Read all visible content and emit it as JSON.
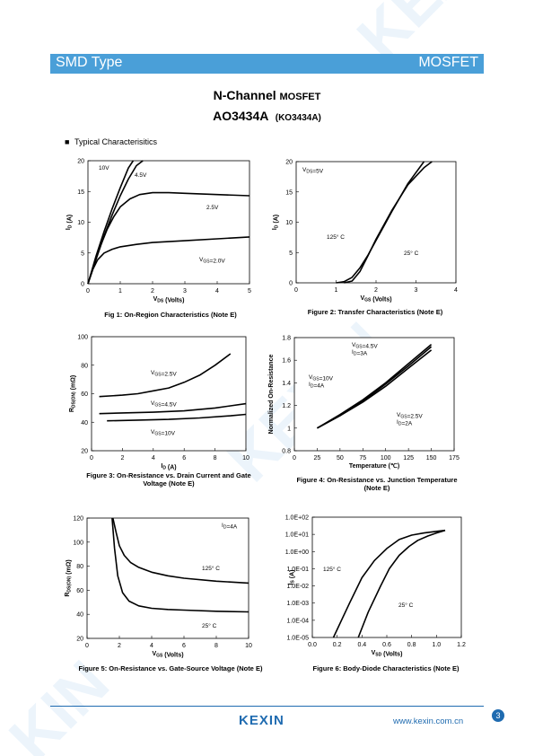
{
  "header": {
    "left_label": "SMD Type",
    "right_label": "MOSFET",
    "banner_color": "#4a9fd8"
  },
  "title": {
    "line1": "N-Channel",
    "line1_suffix": "MOSFET",
    "part_number": "AO3434A",
    "part_alt": "(KO3434A)"
  },
  "section": {
    "bullet": "■",
    "label": "Typical  Characterisitics"
  },
  "chart_data": [
    {
      "type": "line",
      "caption": "Fig 1: On-Region Characteristics (Note E)",
      "xlabel": "V_DS (Volts)",
      "ylabel": "I_D (A)",
      "xlim": [
        0,
        5
      ],
      "ylim": [
        0,
        20
      ],
      "xticks": [
        "0",
        "1",
        "2",
        "3",
        "4",
        "5"
      ],
      "yticks": [
        "0",
        "5",
        "10",
        "15",
        "20"
      ],
      "series": [
        {
          "name": "10V",
          "x": [
            0,
            0.25,
            0.5,
            0.75,
            1.0,
            1.25,
            1.4
          ],
          "y": [
            0,
            4.5,
            8.5,
            12.2,
            15.6,
            18.8,
            20
          ]
        },
        {
          "name": "4.5V",
          "x": [
            0,
            0.25,
            0.5,
            0.75,
            1.0,
            1.25,
            1.5,
            1.7
          ],
          "y": [
            0,
            4,
            7.8,
            11.2,
            14.3,
            17.0,
            19.2,
            20
          ]
        },
        {
          "name": "2.5V",
          "x": [
            0,
            0.2,
            0.4,
            0.6,
            0.8,
            1.0,
            1.3,
            1.6,
            2.0,
            2.5,
            3.0,
            4.0,
            5.0
          ],
          "y": [
            0,
            3.2,
            6.3,
            8.9,
            10.9,
            12.5,
            13.8,
            14.5,
            14.8,
            14.8,
            14.7,
            14.5,
            14.3
          ]
        },
        {
          "name": "V_GS=2.0V",
          "x": [
            0,
            0.15,
            0.3,
            0.5,
            0.75,
            1.0,
            1.5,
            2.0,
            3.0,
            4.0,
            5.0
          ],
          "y": [
            0,
            2.3,
            3.9,
            5.0,
            5.6,
            6.0,
            6.4,
            6.7,
            7.0,
            7.3,
            7.6
          ]
        }
      ],
      "annotations": [
        "10V",
        "4.5V",
        "2.5V",
        "V_GS=2.0V"
      ]
    },
    {
      "type": "line",
      "caption": "Figure 2: Transfer Characteristics (Note E)",
      "xlabel": "V_GS (Volts)",
      "ylabel": "I_D (A)",
      "xlim": [
        0,
        4
      ],
      "ylim": [
        0,
        20
      ],
      "xticks": [
        "0",
        "1",
        "2",
        "3",
        "4"
      ],
      "yticks": [
        "0",
        "5",
        "10",
        "15",
        "20"
      ],
      "annotations": [
        "V_DS=5V",
        "125° C",
        "25° C"
      ],
      "series": [
        {
          "name": "125° C",
          "x": [
            1.0,
            1.2,
            1.4,
            1.6,
            1.8,
            2.0,
            2.4,
            2.8,
            3.2
          ],
          "y": [
            0,
            0.2,
            0.9,
            2.5,
            4.6,
            7.0,
            11.8,
            16.4,
            20
          ]
        },
        {
          "name": "25° C",
          "x": [
            1.2,
            1.4,
            1.6,
            1.8,
            2.0,
            2.4,
            2.8,
            3.2,
            3.4
          ],
          "y": [
            0,
            0.3,
            1.9,
            4.5,
            7.2,
            12.0,
            16.2,
            19.0,
            20
          ]
        }
      ]
    },
    {
      "type": "line",
      "caption": "Figure 3: On-Resistance vs. Drain Current and Gate Voltage (Note E)",
      "xlabel": "I_D (A)",
      "ylabel": "R_DS(ON) (mΩ)",
      "xlim": [
        0,
        10
      ],
      "ylim": [
        20,
        100
      ],
      "xticks": [
        "0",
        "2",
        "4",
        "6",
        "8",
        "10"
      ],
      "yticks": [
        "20",
        "40",
        "60",
        "80",
        "100"
      ],
      "annotations": [
        "V_GS=2.5V",
        "V_GS=4.5V",
        "V_GS=10V"
      ],
      "series": [
        {
          "name": "V_GS=2.5V",
          "x": [
            0.5,
            2,
            3,
            4,
            5,
            6,
            7,
            8,
            9
          ],
          "y": [
            58,
            59,
            60,
            62,
            64,
            68,
            73,
            80,
            88
          ]
        },
        {
          "name": "V_GS=4.5V",
          "x": [
            0.5,
            2,
            4,
            6,
            8,
            9,
            10
          ],
          "y": [
            46,
            46.5,
            47,
            48,
            50,
            51.5,
            53
          ]
        },
        {
          "name": "V_GS=10V",
          "x": [
            1,
            3,
            5,
            7,
            9,
            10
          ],
          "y": [
            41,
            41.5,
            42,
            43,
            44.5,
            45.5
          ]
        }
      ]
    },
    {
      "type": "line",
      "caption": "Figure 4: On-Resistance vs. Junction Temperature (Note E)",
      "xlabel": "Temperature (℃)",
      "ylabel": "Normalized On-Resistance",
      "xlim": [
        0,
        175
      ],
      "ylim": [
        0.8,
        1.8
      ],
      "xticks": [
        "0",
        "25",
        "50",
        "75",
        "100",
        "125",
        "150",
        "175"
      ],
      "yticks": [
        "0.8",
        "1",
        "1.2",
        "1.4",
        "1.6",
        "1.8"
      ],
      "annotations": [
        "V_GS=4.5V",
        "I_D=3A",
        "V_GS=10V",
        "I_D=4A",
        "V_GS=2.5V",
        "I_D=2A"
      ],
      "series": [
        {
          "name": "V_GS=4.5V, I_D=3A",
          "x": [
            25,
            50,
            75,
            100,
            125,
            150
          ],
          "y": [
            1.0,
            1.11,
            1.24,
            1.39,
            1.55,
            1.72
          ]
        },
        {
          "name": "V_GS=10V, I_D=4A",
          "x": [
            25,
            50,
            75,
            100,
            125,
            150
          ],
          "y": [
            1.0,
            1.11,
            1.23,
            1.37,
            1.53,
            1.69
          ]
        },
        {
          "name": "V_GS=2.5V, I_D=2A",
          "x": [
            25,
            50,
            75,
            100,
            125,
            150
          ],
          "y": [
            1.0,
            1.12,
            1.25,
            1.4,
            1.57,
            1.74
          ]
        }
      ]
    },
    {
      "type": "line",
      "caption": "Figure 5: On-Resistance vs. Gate-Source Voltage (Note E)",
      "xlabel": "V_GS (Volts)",
      "ylabel": "R_DS(ON) (mΩ)",
      "xlim": [
        0,
        10
      ],
      "ylim": [
        20,
        120
      ],
      "xticks": [
        "0",
        "2",
        "4",
        "6",
        "8",
        "10"
      ],
      "yticks": [
        "20",
        "40",
        "60",
        "80",
        "100",
        "120"
      ],
      "annotations": [
        "I_D=4A",
        "125° C",
        "25° C"
      ],
      "series": [
        {
          "name": "125° C",
          "x": [
            1.6,
            1.8,
            2.0,
            2.3,
            2.7,
            3.2,
            4,
            5,
            6,
            8,
            10
          ],
          "y": [
            120,
            108,
            97,
            89,
            83,
            79,
            75,
            72,
            70,
            67.5,
            66
          ]
        },
        {
          "name": "25° C",
          "x": [
            1.55,
            1.7,
            1.9,
            2.2,
            2.6,
            3.2,
            4,
            5,
            6,
            8,
            10
          ],
          "y": [
            120,
            95,
            72,
            58,
            51,
            47,
            45,
            44,
            43.5,
            42.5,
            42
          ]
        }
      ]
    },
    {
      "type": "line",
      "caption": "Figure 6: Body-Diode Characteristics (Note E)",
      "xlabel": "V_SD (Volts)",
      "ylabel": "I_S (A)",
      "xlim": [
        0,
        1.2
      ],
      "ylim": [
        "1.0E-05",
        "1.0E+02"
      ],
      "log_y": true,
      "xticks": [
        "0.0",
        "0.2",
        "0.4",
        "0.6",
        "0.8",
        "1.0",
        "1.2"
      ],
      "yticks": [
        "1.0E+02",
        "1.0E+01",
        "1.0E+00",
        "1.0E-01",
        "1.0E-02",
        "1.0E-03",
        "1.0E-04",
        "1.0E-05"
      ],
      "annotations": [
        "125° C",
        "25° C"
      ],
      "series": [
        {
          "name": "125° C",
          "x": [
            0.17,
            0.3,
            0.4,
            0.5,
            0.6,
            0.7,
            0.8,
            0.9,
            1.0,
            1.07
          ],
          "y": [
            1e-05,
            0.001,
            0.03,
            0.3,
            1.5,
            5,
            9,
            12,
            15,
            17
          ]
        },
        {
          "name": "25° C",
          "x": [
            0.37,
            0.45,
            0.55,
            0.62,
            0.7,
            0.78,
            0.85,
            0.93,
            1.0,
            1.07
          ],
          "y": [
            1e-05,
            0.0003,
            0.01,
            0.1,
            0.6,
            2,
            4.5,
            8,
            12,
            17
          ]
        }
      ]
    }
  ],
  "footer": {
    "logo": "KEXIN",
    "url": "www.kexin.com.cn",
    "page": "3",
    "accent": "#1f6bb0"
  }
}
